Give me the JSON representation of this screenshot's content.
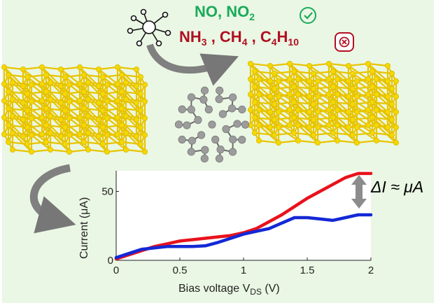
{
  "gases": {
    "detected": {
      "g1": "NO",
      "sep": ", ",
      "g2": "NO",
      "g2_sub": "2"
    },
    "rejected": {
      "g1": "NH",
      "g1_sub": "3",
      "sep1": " , ",
      "g2": "CH",
      "g2_sub": "4",
      "sep2": " , ",
      "g3": "C",
      "g3_sub1": "4",
      "g3_mid": "H",
      "g3_sub2": "10"
    }
  },
  "icons": [
    "molecule-icon",
    "check-circle-icon",
    "cross-octagon-icon",
    "gold-lattice-left",
    "gold-lattice-right",
    "fullerene-icon",
    "curved-arrow-icon"
  ],
  "colors": {
    "background": "#eaf7e4",
    "gold": "#f5d800",
    "detected": "#1aaa5a",
    "rejected": "#b01022",
    "series_red": "#e8121c",
    "series_blue": "#1328d6",
    "carbon": "#9c9c9c"
  },
  "annotation": {
    "delta": "ΔI ≈ μA"
  },
  "chart_data": {
    "type": "line",
    "xlabel": "Bias voltage V",
    "xlabel_sub": "DS",
    "xlabel_unit": " (V)",
    "ylabel": "Current (μA)",
    "xlim": [
      0,
      2
    ],
    "ylim": [
      0,
      65
    ],
    "xticks": [
      "0",
      "0.5",
      "1",
      "1.5",
      "2"
    ],
    "xtick_values": [
      0,
      0.5,
      1,
      1.5,
      2
    ],
    "yticks": [
      "0",
      "50"
    ],
    "ytick_values": [
      0,
      50
    ],
    "series": [
      {
        "color": "#e8121c",
        "x": [
          0,
          0.1,
          0.2,
          0.3,
          0.4,
          0.5,
          0.6,
          0.7,
          0.8,
          0.9,
          1.0,
          1.1,
          1.2,
          1.3,
          1.4,
          1.5,
          1.6,
          1.7,
          1.8,
          1.9,
          2.0
        ],
        "y": [
          1,
          4,
          7,
          10,
          12,
          14,
          15,
          16,
          17,
          18,
          20,
          23,
          28,
          33,
          39,
          45,
          50,
          55,
          60,
          63,
          63
        ]
      },
      {
        "color": "#1328d6",
        "x": [
          0,
          0.1,
          0.2,
          0.3,
          0.4,
          0.5,
          0.6,
          0.7,
          0.8,
          0.9,
          1.0,
          1.1,
          1.2,
          1.3,
          1.4,
          1.5,
          1.6,
          1.7,
          1.8,
          1.9,
          2.0
        ],
        "y": [
          2,
          5,
          8,
          9,
          10,
          10,
          10,
          10.5,
          13,
          16,
          19,
          21,
          23,
          27,
          31,
          31,
          30,
          29,
          31,
          33,
          33
        ]
      }
    ]
  }
}
